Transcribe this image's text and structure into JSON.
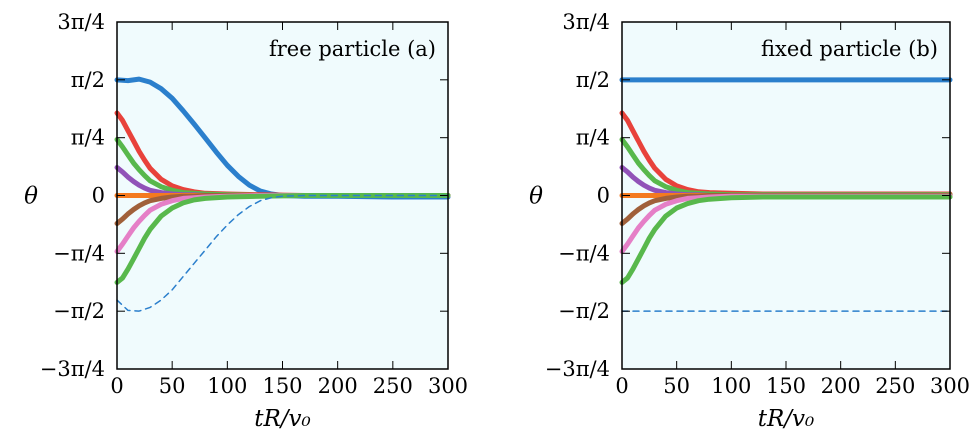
{
  "chart_data": [
    {
      "type": "line",
      "panel_label": "free particle (a)",
      "xlabel": "tR/v₀",
      "ylabel": "θ",
      "xlim": [
        0,
        300
      ],
      "ylim": [
        -2.356,
        2.356
      ],
      "xticks": [
        0,
        50,
        100,
        150,
        200,
        250,
        300
      ],
      "yticks": [
        {
          "value": 2.356,
          "label": "3π/4"
        },
        {
          "value": 1.571,
          "label": "π/2"
        },
        {
          "value": 0.785,
          "label": "π/4"
        },
        {
          "value": 0,
          "label": "0"
        },
        {
          "value": -0.785,
          "label": "−π/4"
        },
        {
          "value": -1.571,
          "label": "−π/2"
        },
        {
          "value": -2.356,
          "label": "−3π/4"
        }
      ],
      "background": "#f0fbfd",
      "series": [
        {
          "color": "#2b7fcc",
          "dashed": false,
          "x": [
            0,
            10,
            20,
            30,
            40,
            50,
            60,
            70,
            80,
            90,
            100,
            110,
            120,
            130,
            140,
            150,
            170,
            200,
            250,
            300
          ],
          "y": [
            1.57,
            1.56,
            1.58,
            1.54,
            1.45,
            1.32,
            1.15,
            0.97,
            0.78,
            0.59,
            0.41,
            0.26,
            0.14,
            0.06,
            0.02,
            0.0,
            -0.01,
            -0.01,
            -0.02,
            -0.02
          ]
        },
        {
          "color": "#2b7fcc",
          "dashed": true,
          "x": [
            0,
            10,
            20,
            30,
            40,
            50,
            60,
            70,
            80,
            90,
            100,
            110,
            120,
            130,
            140,
            150,
            170,
            200,
            250,
            300
          ],
          "y": [
            -1.42,
            -1.56,
            -1.57,
            -1.52,
            -1.42,
            -1.28,
            -1.1,
            -0.92,
            -0.74,
            -0.56,
            -0.4,
            -0.26,
            -0.15,
            -0.07,
            -0.03,
            -0.01,
            0.0,
            0.0,
            0.0,
            0.0
          ]
        },
        {
          "color": "#e8423b",
          "dashed": false,
          "x": [
            0,
            5,
            10,
            15,
            20,
            25,
            30,
            40,
            50,
            60,
            70,
            80,
            100,
            130,
            170,
            300
          ],
          "y": [
            1.12,
            1.02,
            0.88,
            0.74,
            0.6,
            0.48,
            0.37,
            0.22,
            0.13,
            0.08,
            0.05,
            0.03,
            0.02,
            0.01,
            0.0,
            0.0
          ]
        },
        {
          "color": "#58b84c",
          "dashed": false,
          "x": [
            0,
            5,
            10,
            15,
            20,
            25,
            30,
            40,
            50,
            60,
            70,
            80,
            100,
            130,
            170,
            300
          ],
          "y": [
            0.76,
            0.66,
            0.55,
            0.44,
            0.35,
            0.27,
            0.2,
            0.12,
            0.07,
            0.04,
            0.03,
            0.02,
            0.01,
            0.0,
            0.0,
            0.0
          ]
        },
        {
          "color": "#9152b8",
          "dashed": false,
          "x": [
            0,
            5,
            10,
            15,
            20,
            25,
            30,
            40,
            50,
            60,
            70,
            80,
            100,
            130,
            170,
            300
          ],
          "y": [
            0.38,
            0.32,
            0.25,
            0.19,
            0.14,
            0.1,
            0.07,
            0.04,
            0.02,
            0.01,
            0.01,
            0.0,
            0.0,
            0.0,
            0.0,
            0.0
          ]
        },
        {
          "color": "#f47a1f",
          "dashed": false,
          "x": [
            0,
            300
          ],
          "y": [
            0.0,
            0.0
          ]
        },
        {
          "color": "#a0603a",
          "dashed": false,
          "x": [
            0,
            5,
            10,
            15,
            20,
            25,
            30,
            40,
            50,
            60,
            70,
            80,
            100,
            130,
            170,
            300
          ],
          "y": [
            -0.38,
            -0.32,
            -0.25,
            -0.19,
            -0.14,
            -0.1,
            -0.07,
            -0.04,
            -0.02,
            -0.01,
            -0.01,
            0.0,
            0.0,
            0.0,
            0.0,
            0.0
          ]
        },
        {
          "color": "#e57fc7",
          "dashed": false,
          "x": [
            0,
            5,
            10,
            15,
            20,
            25,
            30,
            40,
            50,
            60,
            70,
            80,
            100,
            130,
            170,
            300
          ],
          "y": [
            -0.76,
            -0.66,
            -0.55,
            -0.44,
            -0.35,
            -0.27,
            -0.2,
            -0.12,
            -0.07,
            -0.04,
            -0.03,
            -0.02,
            -0.01,
            0.0,
            0.0,
            0.0
          ]
        },
        {
          "color": "#58b84c",
          "dashed": false,
          "x": [
            0,
            5,
            10,
            15,
            20,
            25,
            30,
            40,
            50,
            60,
            70,
            80,
            100,
            130,
            170,
            300
          ],
          "y": [
            -1.18,
            -1.12,
            -1.0,
            -0.86,
            -0.72,
            -0.58,
            -0.46,
            -0.28,
            -0.17,
            -0.1,
            -0.06,
            -0.04,
            -0.02,
            -0.01,
            0.0,
            0.0
          ]
        }
      ]
    },
    {
      "type": "line",
      "panel_label": "fixed particle (b)",
      "xlabel": "tR/v₀",
      "ylabel": "θ",
      "xlim": [
        0,
        300
      ],
      "ylim": [
        -2.356,
        2.356
      ],
      "xticks": [
        0,
        50,
        100,
        150,
        200,
        250,
        300
      ],
      "yticks": [
        {
          "value": 2.356,
          "label": "3π/4"
        },
        {
          "value": 1.571,
          "label": "π/2"
        },
        {
          "value": 0.785,
          "label": "π/4"
        },
        {
          "value": 0,
          "label": "0"
        },
        {
          "value": -0.785,
          "label": "−π/4"
        },
        {
          "value": -1.571,
          "label": "−π/2"
        },
        {
          "value": -2.356,
          "label": "−3π/4"
        }
      ],
      "background": "#f0fbfd",
      "series": [
        {
          "color": "#2b7fcc",
          "dashed": false,
          "x": [
            0,
            300
          ],
          "y": [
            1.57,
            1.57
          ]
        },
        {
          "color": "#2b7fcc",
          "dashed": true,
          "x": [
            0,
            300
          ],
          "y": [
            -1.57,
            -1.57
          ]
        },
        {
          "color": "#e8423b",
          "dashed": false,
          "x": [
            0,
            5,
            10,
            15,
            20,
            25,
            30,
            40,
            50,
            60,
            70,
            80,
            100,
            130,
            170,
            300
          ],
          "y": [
            1.12,
            1.02,
            0.88,
            0.74,
            0.6,
            0.48,
            0.37,
            0.22,
            0.13,
            0.08,
            0.05,
            0.04,
            0.03,
            0.02,
            0.02,
            0.02
          ]
        },
        {
          "color": "#58b84c",
          "dashed": false,
          "x": [
            0,
            5,
            10,
            15,
            20,
            25,
            30,
            40,
            50,
            60,
            70,
            80,
            100,
            130,
            170,
            300
          ],
          "y": [
            0.76,
            0.66,
            0.55,
            0.44,
            0.35,
            0.27,
            0.2,
            0.12,
            0.07,
            0.04,
            0.03,
            0.02,
            0.01,
            0.01,
            0.01,
            0.01
          ]
        },
        {
          "color": "#9152b8",
          "dashed": false,
          "x": [
            0,
            5,
            10,
            15,
            20,
            25,
            30,
            40,
            50,
            60,
            70,
            80,
            100,
            130,
            170,
            300
          ],
          "y": [
            0.38,
            0.32,
            0.25,
            0.19,
            0.14,
            0.1,
            0.07,
            0.04,
            0.02,
            0.01,
            0.01,
            0.0,
            0.0,
            0.0,
            0.0,
            0.0
          ]
        },
        {
          "color": "#f47a1f",
          "dashed": false,
          "x": [
            0,
            300
          ],
          "y": [
            0.0,
            0.0
          ]
        },
        {
          "color": "#a0603a",
          "dashed": false,
          "x": [
            0,
            5,
            10,
            15,
            20,
            25,
            30,
            40,
            50,
            60,
            70,
            80,
            100,
            130,
            170,
            300
          ],
          "y": [
            -0.38,
            -0.32,
            -0.25,
            -0.19,
            -0.14,
            -0.1,
            -0.07,
            -0.04,
            -0.02,
            -0.01,
            -0.01,
            0.0,
            0.0,
            0.0,
            0.0,
            0.0
          ]
        },
        {
          "color": "#e57fc7",
          "dashed": false,
          "x": [
            0,
            5,
            10,
            15,
            20,
            25,
            30,
            40,
            50,
            60,
            70,
            80,
            100,
            130,
            170,
            300
          ],
          "y": [
            -0.76,
            -0.66,
            -0.55,
            -0.44,
            -0.35,
            -0.27,
            -0.2,
            -0.12,
            -0.07,
            -0.04,
            -0.03,
            -0.02,
            -0.01,
            -0.01,
            -0.01,
            -0.01
          ]
        },
        {
          "color": "#58b84c",
          "dashed": false,
          "x": [
            0,
            5,
            10,
            15,
            20,
            25,
            30,
            40,
            50,
            60,
            70,
            80,
            100,
            130,
            170,
            300
          ],
          "y": [
            -1.18,
            -1.12,
            -1.0,
            -0.86,
            -0.72,
            -0.58,
            -0.46,
            -0.28,
            -0.17,
            -0.11,
            -0.07,
            -0.05,
            -0.03,
            -0.02,
            -0.02,
            -0.02
          ]
        }
      ]
    }
  ]
}
